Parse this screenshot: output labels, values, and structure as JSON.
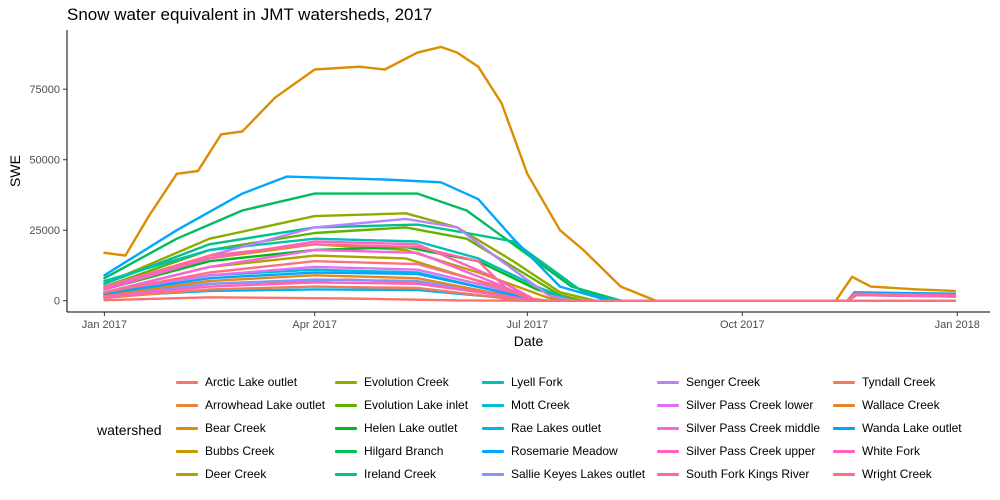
{
  "chart_data": {
    "type": "line",
    "title": "Snow water equivalent in JMT watersheds, 2017",
    "xlabel": "Date",
    "ylabel": "SWE",
    "x_ticks": [
      "Jan 2017",
      "Apr 2017",
      "Jul 2017",
      "Oct 2017",
      "Jan 2018"
    ],
    "y_ticks": [
      "0",
      "25000",
      "50000",
      "75000"
    ],
    "ylim": [
      -4000,
      96000
    ],
    "xlim": [
      "2016-12-16",
      "2018-01-15"
    ],
    "grid": false,
    "legend": {
      "title": "watershed",
      "placement": "bottom"
    },
    "series": [
      {
        "name": "Arctic Lake outlet",
        "color": "#F8766D",
        "values": [
          [
            "2017-01-01",
            200
          ],
          [
            "2017-02-15",
            1200
          ],
          [
            "2017-04-15",
            800
          ],
          [
            "2017-06-01",
            100
          ],
          [
            "2017-06-25",
            0
          ],
          [
            "2017-11-15",
            0
          ],
          [
            "2017-12-31",
            0
          ]
        ]
      },
      {
        "name": "Arrowhead Lake outlet",
        "color": "#EC8239",
        "values": [
          [
            "2017-01-01",
            1500
          ],
          [
            "2017-02-15",
            6000
          ],
          [
            "2017-04-15",
            7500
          ],
          [
            "2017-05-15",
            6500
          ],
          [
            "2017-06-15",
            2500
          ],
          [
            "2017-07-10",
            0
          ],
          [
            "2017-11-15",
            0
          ],
          [
            "2017-11-20",
            2500
          ],
          [
            "2017-12-31",
            1500
          ]
        ]
      },
      {
        "name": "Bear Creek",
        "color": "#DB8E00",
        "values": [
          [
            "2017-01-01",
            17000
          ],
          [
            "2017-01-10",
            16000
          ],
          [
            "2017-01-20",
            30000
          ],
          [
            "2017-02-01",
            45000
          ],
          [
            "2017-02-10",
            46000
          ],
          [
            "2017-02-20",
            59000
          ],
          [
            "2017-03-01",
            60000
          ],
          [
            "2017-03-15",
            72000
          ],
          [
            "2017-04-01",
            82000
          ],
          [
            "2017-04-20",
            83000
          ],
          [
            "2017-05-01",
            82000
          ],
          [
            "2017-05-15",
            88000
          ],
          [
            "2017-05-25",
            90000
          ],
          [
            "2017-06-01",
            88000
          ],
          [
            "2017-06-10",
            83000
          ],
          [
            "2017-06-20",
            70000
          ],
          [
            "2017-07-01",
            45000
          ],
          [
            "2017-07-15",
            25000
          ],
          [
            "2017-07-25",
            18000
          ],
          [
            "2017-08-10",
            5000
          ],
          [
            "2017-08-25",
            0
          ],
          [
            "2017-11-10",
            0
          ],
          [
            "2017-11-17",
            8500
          ],
          [
            "2017-11-25",
            5000
          ],
          [
            "2017-12-15",
            4000
          ],
          [
            "2017-12-31",
            3500
          ]
        ]
      },
      {
        "name": "Bubbs Creek",
        "color": "#C79800",
        "values": [
          [
            "2017-01-01",
            5000
          ],
          [
            "2017-02-15",
            15000
          ],
          [
            "2017-04-01",
            20000
          ],
          [
            "2017-05-10",
            18000
          ],
          [
            "2017-06-10",
            10000
          ],
          [
            "2017-07-10",
            1000
          ],
          [
            "2017-07-20",
            0
          ],
          [
            "2017-11-15",
            0
          ],
          [
            "2017-11-18",
            3000
          ],
          [
            "2017-12-31",
            2000
          ]
        ]
      },
      {
        "name": "Deer Creek",
        "color": "#AEA200",
        "values": [
          [
            "2017-01-01",
            3000
          ],
          [
            "2017-02-15",
            12000
          ],
          [
            "2017-04-01",
            16000
          ],
          [
            "2017-05-10",
            15000
          ],
          [
            "2017-06-10",
            7000
          ],
          [
            "2017-07-05",
            0
          ],
          [
            "2017-12-31",
            0
          ]
        ]
      },
      {
        "name": "Evolution Creek",
        "color": "#8FAA00",
        "values": [
          [
            "2017-01-01",
            6000
          ],
          [
            "2017-02-15",
            22000
          ],
          [
            "2017-04-01",
            30000
          ],
          [
            "2017-05-10",
            31000
          ],
          [
            "2017-06-01",
            26000
          ],
          [
            "2017-06-25",
            14000
          ],
          [
            "2017-07-15",
            3000
          ],
          [
            "2017-07-30",
            0
          ],
          [
            "2017-11-15",
            0
          ],
          [
            "2017-11-18",
            2500
          ],
          [
            "2017-12-31",
            2000
          ]
        ]
      },
      {
        "name": "Evolution Lake inlet",
        "color": "#64B200",
        "values": [
          [
            "2017-01-01",
            5000
          ],
          [
            "2017-02-15",
            18000
          ],
          [
            "2017-04-01",
            24000
          ],
          [
            "2017-05-10",
            26000
          ],
          [
            "2017-06-05",
            22000
          ],
          [
            "2017-06-25",
            12000
          ],
          [
            "2017-07-15",
            2000
          ],
          [
            "2017-07-25",
            0
          ],
          [
            "2017-12-31",
            0
          ]
        ]
      },
      {
        "name": "Helen Lake outlet",
        "color": "#00B81F",
        "values": [
          [
            "2017-01-01",
            4000
          ],
          [
            "2017-02-15",
            14000
          ],
          [
            "2017-04-01",
            18000
          ],
          [
            "2017-05-10",
            19000
          ],
          [
            "2017-06-10",
            14000
          ],
          [
            "2017-07-05",
            4000
          ],
          [
            "2017-07-20",
            0
          ],
          [
            "2017-12-31",
            0
          ]
        ]
      },
      {
        "name": "Hilgard Branch",
        "color": "#00BD5C",
        "values": [
          [
            "2017-01-01",
            8000
          ],
          [
            "2017-02-01",
            22000
          ],
          [
            "2017-03-01",
            32000
          ],
          [
            "2017-04-01",
            38000
          ],
          [
            "2017-05-15",
            38000
          ],
          [
            "2017-06-05",
            32000
          ],
          [
            "2017-06-25",
            20000
          ],
          [
            "2017-07-20",
            5000
          ],
          [
            "2017-08-10",
            0
          ],
          [
            "2017-11-15",
            0
          ],
          [
            "2017-11-18",
            2000
          ],
          [
            "2017-12-31",
            1500
          ]
        ]
      },
      {
        "name": "Ireland Creek",
        "color": "#00C08D",
        "values": [
          [
            "2017-01-01",
            6000
          ],
          [
            "2017-02-15",
            20000
          ],
          [
            "2017-04-01",
            26000
          ],
          [
            "2017-05-15",
            27000
          ],
          [
            "2017-06-05",
            24000
          ],
          [
            "2017-06-25",
            21000
          ],
          [
            "2017-07-10",
            12000
          ],
          [
            "2017-07-25",
            3000
          ],
          [
            "2017-08-10",
            0
          ],
          [
            "2017-12-31",
            0
          ]
        ]
      },
      {
        "name": "Lyell Fork",
        "color": "#00C1B2",
        "values": [
          [
            "2017-01-01",
            7000
          ],
          [
            "2017-02-15",
            18000
          ],
          [
            "2017-04-01",
            22000
          ],
          [
            "2017-05-15",
            21000
          ],
          [
            "2017-06-10",
            15000
          ],
          [
            "2017-07-05",
            5000
          ],
          [
            "2017-07-20",
            0
          ],
          [
            "2017-12-31",
            0
          ]
        ]
      },
      {
        "name": "Mott Creek",
        "color": "#00BDD4",
        "values": [
          [
            "2017-01-01",
            3000
          ],
          [
            "2017-02-15",
            9000
          ],
          [
            "2017-04-01",
            11000
          ],
          [
            "2017-05-15",
            10000
          ],
          [
            "2017-06-15",
            4000
          ],
          [
            "2017-07-05",
            0
          ],
          [
            "2017-12-31",
            0
          ]
        ]
      },
      {
        "name": "Rae Lakes outlet",
        "color": "#00B5EE",
        "values": [
          [
            "2017-01-01",
            1500
          ],
          [
            "2017-02-15",
            3500
          ],
          [
            "2017-04-01",
            4000
          ],
          [
            "2017-05-15",
            3800
          ],
          [
            "2017-06-15",
            1500
          ],
          [
            "2017-07-01",
            0
          ],
          [
            "2017-12-31",
            0
          ]
        ]
      },
      {
        "name": "Rosemarie Meadow",
        "color": "#00A7FF",
        "values": [
          [
            "2017-01-01",
            9000
          ],
          [
            "2017-02-01",
            25000
          ],
          [
            "2017-03-01",
            38000
          ],
          [
            "2017-03-20",
            44000
          ],
          [
            "2017-05-01",
            43000
          ],
          [
            "2017-05-25",
            42000
          ],
          [
            "2017-06-10",
            36000
          ],
          [
            "2017-06-25",
            22000
          ],
          [
            "2017-07-15",
            5000
          ],
          [
            "2017-08-05",
            0
          ],
          [
            "2017-11-15",
            0
          ],
          [
            "2017-11-18",
            3000
          ],
          [
            "2017-12-31",
            2500
          ]
        ]
      },
      {
        "name": "Sallie Keyes Lakes outlet",
        "color": "#7F96FF",
        "values": [
          [
            "2017-01-01",
            2000
          ],
          [
            "2017-02-15",
            6000
          ],
          [
            "2017-04-01",
            7500
          ],
          [
            "2017-05-15",
            7000
          ],
          [
            "2017-06-15",
            2500
          ],
          [
            "2017-07-05",
            0
          ],
          [
            "2017-12-31",
            0
          ]
        ]
      },
      {
        "name": "Senger Creek",
        "color": "#BC81FF",
        "values": [
          [
            "2017-01-01",
            4000
          ],
          [
            "2017-02-15",
            16000
          ],
          [
            "2017-04-01",
            26000
          ],
          [
            "2017-05-10",
            29000
          ],
          [
            "2017-06-01",
            26000
          ],
          [
            "2017-06-20",
            14000
          ],
          [
            "2017-07-10",
            2000
          ],
          [
            "2017-07-20",
            0
          ],
          [
            "2017-12-31",
            0
          ]
        ]
      },
      {
        "name": "Silver Pass Creek lower",
        "color": "#E26EF7",
        "values": [
          [
            "2017-01-01",
            3000
          ],
          [
            "2017-02-15",
            9000
          ],
          [
            "2017-04-01",
            12000
          ],
          [
            "2017-05-15",
            11000
          ],
          [
            "2017-06-15",
            5000
          ],
          [
            "2017-07-05",
            0
          ],
          [
            "2017-12-31",
            0
          ]
        ]
      },
      {
        "name": "Silver Pass Creek middle",
        "color": "#F863DF",
        "values": [
          [
            "2017-01-01",
            3000
          ],
          [
            "2017-02-15",
            12000
          ],
          [
            "2017-04-01",
            18000
          ],
          [
            "2017-05-15",
            17000
          ],
          [
            "2017-06-15",
            7000
          ],
          [
            "2017-07-05",
            0
          ],
          [
            "2017-12-31",
            0
          ]
        ]
      },
      {
        "name": "Silver Pass Creek upper",
        "color": "#FF62BF",
        "values": [
          [
            "2017-01-01",
            4000
          ],
          [
            "2017-02-15",
            15000
          ],
          [
            "2017-04-01",
            21000
          ],
          [
            "2017-05-15",
            20000
          ],
          [
            "2017-06-15",
            9000
          ],
          [
            "2017-07-05",
            0
          ],
          [
            "2017-11-15",
            0
          ],
          [
            "2017-11-18",
            2000
          ],
          [
            "2017-12-31",
            1500
          ]
        ]
      },
      {
        "name": "South Fork Kings River",
        "color": "#FF6A9A",
        "values": [
          [
            "2017-01-01",
            5000
          ],
          [
            "2017-02-15",
            16000
          ],
          [
            "2017-04-01",
            20000
          ],
          [
            "2017-05-15",
            19000
          ],
          [
            "2017-06-10",
            14000
          ],
          [
            "2017-06-25",
            2000
          ],
          [
            "2017-07-05",
            0
          ],
          [
            "2017-11-15",
            0
          ],
          [
            "2017-11-18",
            2500
          ],
          [
            "2017-12-31",
            2000
          ]
        ]
      },
      {
        "name": "Tyndall Creek",
        "color": "#F37B59",
        "values": [
          [
            "2017-01-01",
            1000
          ],
          [
            "2017-02-15",
            4000
          ],
          [
            "2017-04-01",
            5000
          ],
          [
            "2017-05-15",
            4500
          ],
          [
            "2017-06-15",
            1500
          ],
          [
            "2017-07-01",
            0
          ],
          [
            "2017-12-31",
            0
          ]
        ]
      },
      {
        "name": "Wallace Creek",
        "color": "#E7851E",
        "values": [
          [
            "2017-01-01",
            2000
          ],
          [
            "2017-02-15",
            7000
          ],
          [
            "2017-04-01",
            9000
          ],
          [
            "2017-05-15",
            8000
          ],
          [
            "2017-06-15",
            3000
          ],
          [
            "2017-07-05",
            0
          ],
          [
            "2017-12-31",
            0
          ]
        ]
      },
      {
        "name": "Wanda Lake outlet",
        "color": "#00A6FF",
        "values": [
          [
            "2017-01-01",
            2500
          ],
          [
            "2017-02-15",
            8000
          ],
          [
            "2017-04-01",
            10000
          ],
          [
            "2017-05-15",
            9500
          ],
          [
            "2017-06-15",
            4000
          ],
          [
            "2017-07-05",
            0
          ],
          [
            "2017-12-31",
            0
          ]
        ]
      },
      {
        "name": "White Fork",
        "color": "#FF61C3",
        "values": [
          [
            "2017-01-01",
            1500
          ],
          [
            "2017-02-15",
            5000
          ],
          [
            "2017-04-01",
            6500
          ],
          [
            "2017-05-15",
            6000
          ],
          [
            "2017-06-15",
            2500
          ],
          [
            "2017-07-05",
            0
          ],
          [
            "2017-12-31",
            0
          ]
        ]
      },
      {
        "name": "Wright Creek",
        "color": "#FC717F",
        "values": [
          [
            "2017-01-01",
            3000
          ],
          [
            "2017-02-15",
            10000
          ],
          [
            "2017-04-01",
            14000
          ],
          [
            "2017-05-15",
            13000
          ],
          [
            "2017-06-15",
            6000
          ],
          [
            "2017-07-05",
            0
          ],
          [
            "2017-12-31",
            0
          ]
        ]
      }
    ]
  }
}
